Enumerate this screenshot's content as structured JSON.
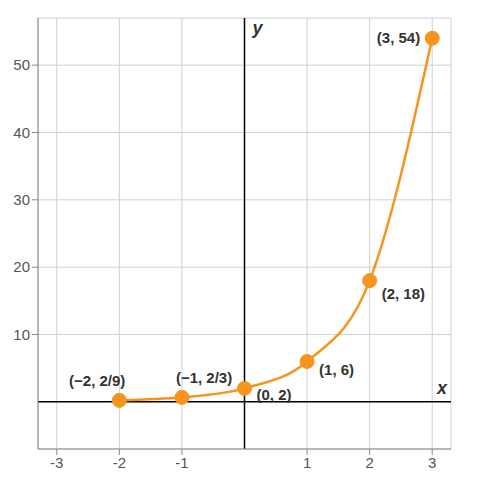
{
  "chart_data": {
    "type": "line",
    "x_label": "x",
    "y_label": "y",
    "x": [
      -2,
      -1,
      0,
      1,
      2,
      3
    ],
    "values": [
      0.222,
      0.667,
      2,
      6,
      18,
      54
    ],
    "value_labels": [
      "(−2, 2/9)",
      "(−1, 2/3)",
      "(0, 2)",
      "(1, 6)",
      "(2, 18)",
      "(3, 54)"
    ],
    "data_labels": true,
    "color": "#f7941d",
    "marker": "circle",
    "xlim": [
      -3.3,
      3.3
    ],
    "ylim": [
      -7,
      57
    ],
    "xticks": [
      -3,
      -2,
      -1,
      1,
      2,
      3
    ],
    "yticks": [
      10,
      20,
      30,
      40,
      50
    ],
    "grid": true
  }
}
